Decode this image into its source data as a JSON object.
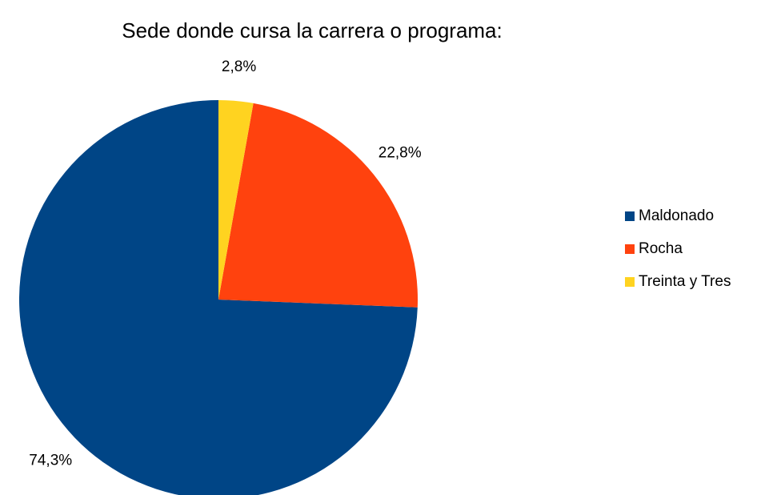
{
  "chart_data": {
    "type": "pie",
    "title": "Sede donde cursa la carrera o programa:",
    "categories": [
      "Maldonado",
      "Rocha",
      "Treinta y Tres"
    ],
    "values": [
      74.3,
      22.8,
      2.8
    ],
    "value_labels": [
      "74,3%",
      "22,8%",
      "2,8%"
    ],
    "colors": [
      "#004586",
      "#ff420e",
      "#ffd320"
    ],
    "legend": "right"
  }
}
